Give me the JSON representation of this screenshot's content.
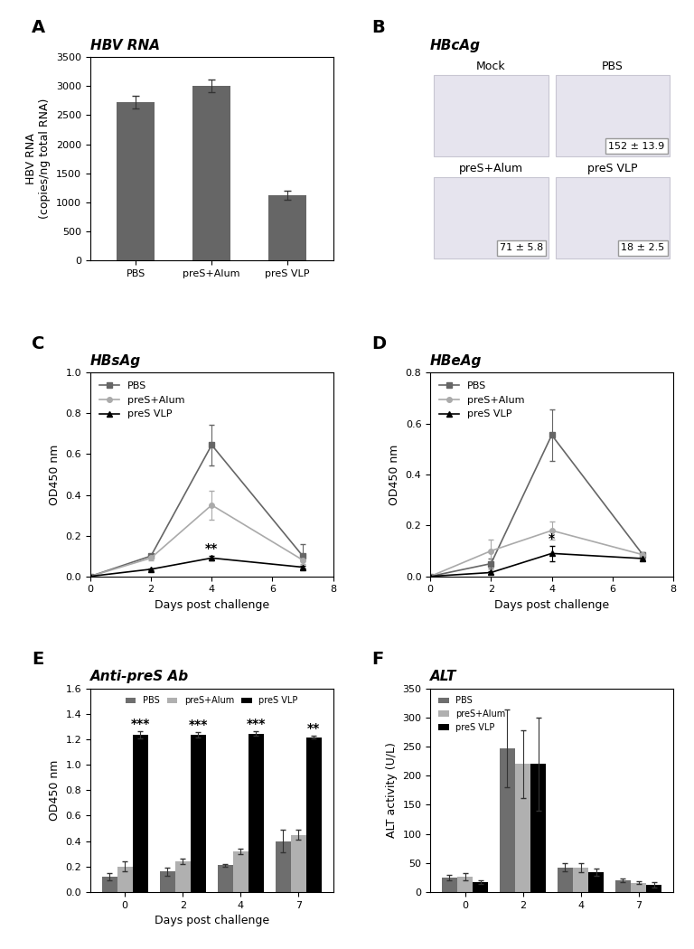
{
  "chart_data": [
    {
      "type": "bar",
      "panel": "A",
      "title": "HBV RNA",
      "y_label": "HBV RNA\n(copies/ng total RNA)",
      "categories": [
        "PBS",
        "preS+Alum",
        "preS VLP"
      ],
      "values": [
        2720,
        3000,
        1120
      ],
      "errors": [
        110,
        110,
        80
      ],
      "color": "#666666",
      "ylim": [
        0,
        3500
      ],
      "yticks": [
        0,
        500,
        1000,
        1500,
        2000,
        2500,
        3000,
        3500
      ]
    },
    {
      "type": "image_grid",
      "panel": "B",
      "title": "HBcAg",
      "images": [
        {
          "label": "Mock"
        },
        {
          "label": "PBS",
          "annotation": "152 ± 13.9"
        },
        {
          "label": "preS+Alum",
          "annotation": "71 ± 5.8"
        },
        {
          "label": "preS VLP",
          "annotation": "18 ± 2.5"
        }
      ]
    },
    {
      "type": "line",
      "panel": "C",
      "title": "HBsAg",
      "x_label": "Days post challenge",
      "y_label": "OD450 nm",
      "x": [
        0,
        2,
        4,
        7
      ],
      "legend": "upper left",
      "series": [
        {
          "name": "PBS",
          "color": "#666666",
          "marker": "square",
          "values": [
            0,
            0.1,
            0.645,
            0.1
          ],
          "errors": [
            0,
            0.01,
            0.1,
            0.06
          ]
        },
        {
          "name": "preS+Alum",
          "color": "#aaaaaa",
          "marker": "circle",
          "values": [
            0,
            0.09,
            0.35,
            0.08
          ],
          "errors": [
            0,
            0.01,
            0.07,
            0.02
          ]
        },
        {
          "name": "preS VLP",
          "color": "#000000",
          "marker": "triangle",
          "values": [
            0,
            0.035,
            0.09,
            0.045
          ],
          "errors": [
            0,
            0.005,
            0.01,
            0.005
          ]
        }
      ],
      "annotations": [
        {
          "x": 4,
          "series": "preS VLP",
          "text": "**"
        }
      ],
      "xlim": [
        0,
        8
      ],
      "xticks": [
        0,
        2,
        4,
        6,
        8
      ],
      "ylim": [
        0,
        1.0
      ],
      "yticks": [
        {
          "value": 0,
          "label": "0.0"
        },
        0.2,
        0.4,
        0.6,
        0.8,
        {
          "value": 1.0,
          "label": "1.0"
        }
      ]
    },
    {
      "type": "line",
      "panel": "D",
      "title": "HBeAg",
      "x_label": "Days post challenge",
      "y_label": "OD450 nm",
      "x": [
        0,
        2,
        4,
        7
      ],
      "legend": "upper left",
      "series": [
        {
          "name": "PBS",
          "color": "#666666",
          "marker": "square",
          "values": [
            0,
            0.05,
            0.555,
            0.085
          ],
          "errors": [
            0,
            0.02,
            0.1,
            0.01
          ]
        },
        {
          "name": "preS+Alum",
          "color": "#aaaaaa",
          "marker": "circle",
          "values": [
            0,
            0.1,
            0.18,
            0.085
          ],
          "errors": [
            0,
            0.045,
            0.035,
            0.01
          ]
        },
        {
          "name": "preS VLP",
          "color": "#000000",
          "marker": "triangle",
          "values": [
            0,
            0.015,
            0.09,
            0.07
          ],
          "errors": [
            0,
            0.005,
            0.03,
            0.005
          ]
        }
      ],
      "annotations": [
        {
          "x": 4,
          "series": "preS VLP",
          "text": "*"
        }
      ],
      "xlim": [
        0,
        8
      ],
      "xticks": [
        0,
        2,
        4,
        6,
        8
      ],
      "ylim": [
        0,
        0.8
      ],
      "yticks": [
        {
          "value": 0,
          "label": "0.0"
        },
        0.2,
        0.4,
        0.6,
        0.8
      ]
    },
    {
      "type": "bar",
      "panel": "E",
      "title": "Anti-preS Ab",
      "x_label": "Days post challenge",
      "y_label": "OD450 nm",
      "categories": [
        "0",
        "2",
        "4",
        "7"
      ],
      "legend": "upper center",
      "series": [
        {
          "name": "PBS",
          "color": "#6e6e6e",
          "values": [
            0.12,
            0.16,
            0.21,
            0.4
          ],
          "errors": [
            0.03,
            0.03,
            0.01,
            0.09
          ]
        },
        {
          "name": "preS+Alum",
          "color": "#b0b0b0",
          "values": [
            0.2,
            0.24,
            0.32,
            0.45
          ],
          "errors": [
            0.04,
            0.02,
            0.02,
            0.04
          ]
        },
        {
          "name": "preS VLP",
          "color": "#000000",
          "values": [
            1.235,
            1.235,
            1.245,
            1.215
          ],
          "errors": [
            0.03,
            0.02,
            0.02,
            0.01
          ]
        }
      ],
      "annotations": [
        {
          "category": "0",
          "series": "preS VLP",
          "text": "***"
        },
        {
          "category": "2",
          "series": "preS VLP",
          "text": "***"
        },
        {
          "category": "4",
          "series": "preS VLP",
          "text": "***"
        },
        {
          "category": "7",
          "series": "preS VLP",
          "text": "**"
        }
      ],
      "ylim": [
        0,
        1.6
      ],
      "yticks": [
        {
          "value": 0,
          "label": "0.0"
        },
        0.2,
        0.4,
        0.6,
        0.8,
        {
          "value": 1.0,
          "label": "1.0"
        },
        1.2,
        1.4,
        1.6
      ]
    },
    {
      "type": "bar",
      "panel": "F",
      "title": "ALT",
      "y_label": "ALT activity (U/L)",
      "categories": [
        "0",
        "2",
        "4",
        "7"
      ],
      "legend": "upper left",
      "series": [
        {
          "name": "PBS",
          "color": "#6e6e6e",
          "values": [
            25,
            247,
            42,
            20
          ],
          "errors": [
            5,
            67,
            7,
            3
          ]
        },
        {
          "name": "preS+Alum",
          "color": "#b0b0b0",
          "values": [
            26,
            220,
            42,
            16
          ],
          "errors": [
            6,
            58,
            8,
            2
          ]
        },
        {
          "name": "preS VLP",
          "color": "#000000",
          "values": [
            17,
            220,
            34,
            12
          ],
          "errors": [
            3,
            80,
            6,
            5
          ]
        }
      ],
      "ylim": [
        0,
        350
      ],
      "yticks": [
        0,
        50,
        100,
        150,
        200,
        250,
        300,
        350
      ]
    }
  ]
}
